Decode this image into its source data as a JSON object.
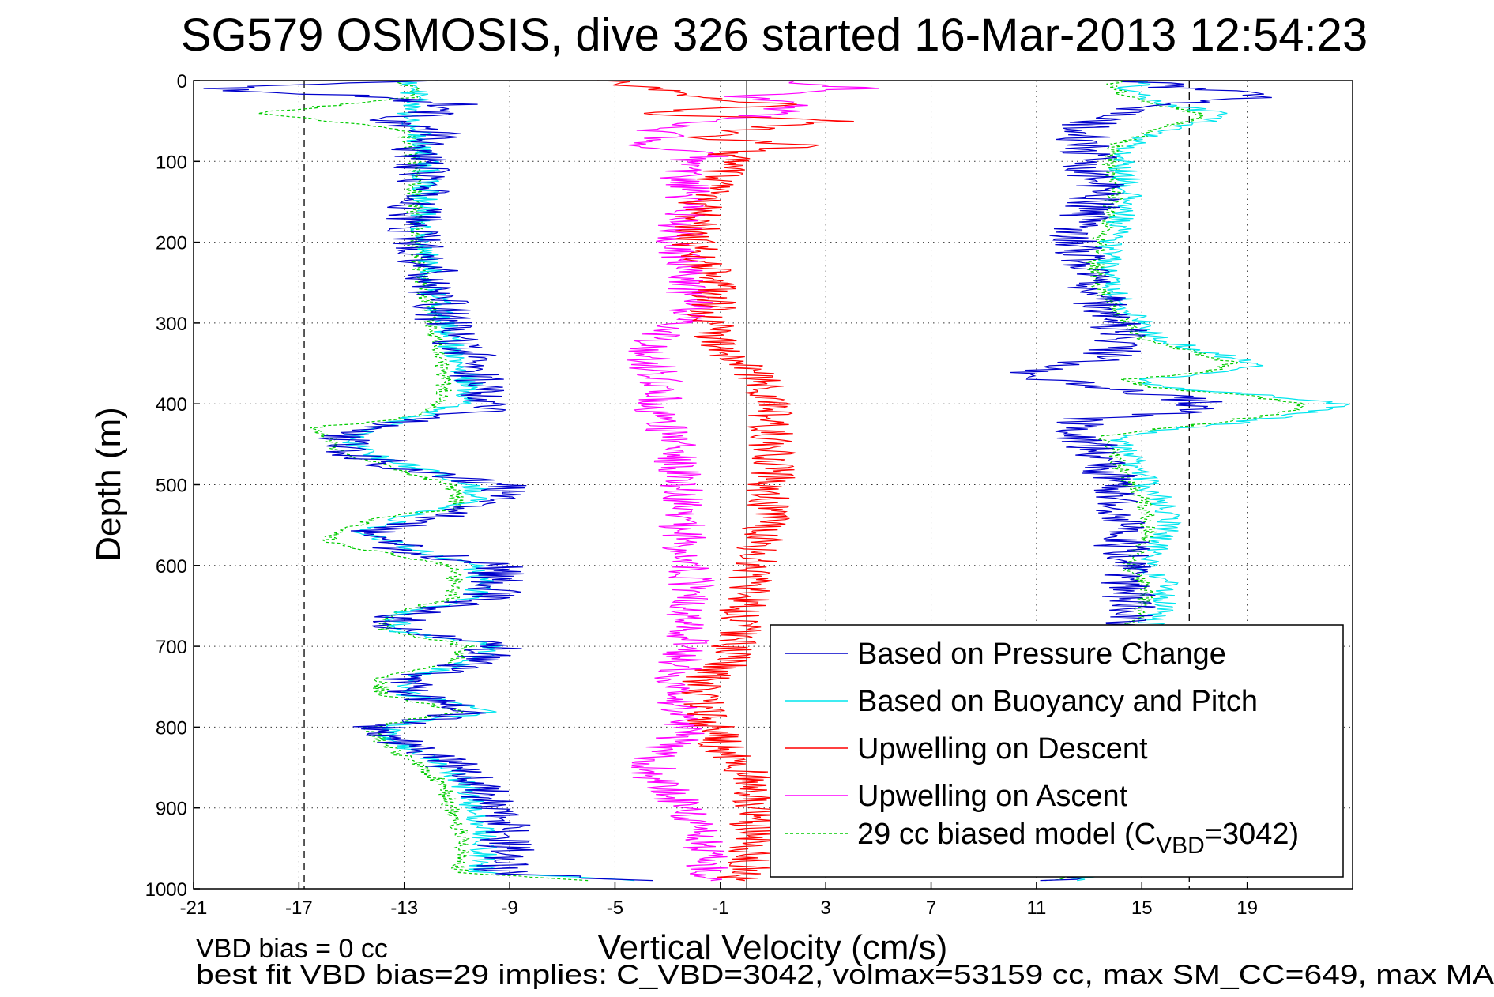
{
  "chart_data": {
    "type": "line",
    "title": "SG579 OSMOSIS, dive 326 started 16-Mar-2013 12:54:23",
    "xlabel": "Vertical Velocity (cm/s)",
    "ylabel": "Depth (m)",
    "xlim": [
      -21,
      23
    ],
    "ylim": [
      1000,
      0
    ],
    "y_reversed": true,
    "xticks": [
      "-21",
      "-17",
      "-13",
      "-9",
      "-5",
      "-1",
      "3",
      "7",
      "11",
      "15",
      "19"
    ],
    "yticks": [
      "0",
      "100",
      "200",
      "300",
      "400",
      "500",
      "600",
      "700",
      "800",
      "900",
      "1000"
    ],
    "grid": true,
    "legend_position": "lower-right",
    "reference_lines": [
      {
        "style": "dashed",
        "x": -16.8
      },
      {
        "style": "dashed",
        "x": 16.8
      },
      {
        "style": "solid",
        "x": 0
      }
    ],
    "footer_lines": [
      "VBD bias = 0 cc",
      "best fit VBD bias=29 implies: C_VBD=3042, volmax=53159 cc, max SM_CC=649, max MA"
    ],
    "series": [
      {
        "name": "Based on Pressure Change",
        "color": "#0000cc",
        "segments": [
          {
            "depth": [
              0,
              10,
              20,
              30,
              40,
              50,
              60,
              70,
              80,
              90,
              100,
              120,
              140,
              160,
              180,
              200,
              220,
              240,
              260,
              280,
              300,
              320,
              340,
              360,
              380,
              400,
              410,
              420,
              440,
              460,
              480,
              500,
              520,
              540,
              560,
              580,
              600,
              620,
              640,
              660,
              680,
              700,
              720,
              740,
              760,
              780,
              800,
              820,
              840,
              860,
              880,
              900,
              920,
              940,
              960,
              980,
              990
            ],
            "values": [
              -12,
              -20.5,
              -14,
              -11,
              -12,
              -13.5,
              -12.5,
              -11.5,
              -12.8,
              -12.2,
              -12.5,
              -12.2,
              -12.4,
              -12.6,
              -12.7,
              -12.5,
              -12.2,
              -12,
              -11.8,
              -11.6,
              -11.5,
              -11,
              -10.5,
              -10.4,
              -10,
              -9.6,
              -9.8,
              -13,
              -15.2,
              -15,
              -13,
              -9.4,
              -9.2,
              -11.5,
              -14.5,
              -13,
              -9.6,
              -9.4,
              -9.8,
              -13,
              -13.3,
              -9.4,
              -10.5,
              -12.8,
              -12.6,
              -10.3,
              -14,
              -13,
              -11.6,
              -10.6,
              -10,
              -9.6,
              -9.3,
              -9.1,
              -9.2,
              -9.3,
              -4.5
            ]
          },
          {
            "depth": [
              990,
              980,
              960,
              940,
              920,
              900,
              880,
              860,
              840,
              820,
              800,
              780,
              760,
              740,
              720,
              700,
              680,
              660,
              640,
              620,
              600,
              580,
              560,
              540,
              520,
              500,
              480,
              460,
              440,
              420,
              410,
              400,
              390,
              380,
              370,
              360,
              350,
              340,
              320,
              300,
              280,
              260,
              240,
              220,
              200,
              180,
              160,
              140,
              120,
              100,
              80,
              60,
              50,
              40,
              30,
              20,
              10,
              0
            ],
            "values": [
              11,
              14,
              14.5,
              14.6,
              14.5,
              14.7,
              14.6,
              14.5,
              14.3,
              14.2,
              14.2,
              14.1,
              14.1,
              14,
              14,
              14.1,
              14.2,
              14.4,
              14.5,
              14.5,
              14.3,
              14.2,
              14.3,
              14.2,
              14.2,
              14,
              13.6,
              13.3,
              12.8,
              12.5,
              16.5,
              17.5,
              16,
              13,
              11.7,
              10.8,
              12.5,
              13.8,
              14.3,
              14,
              13.5,
              13.2,
              13.1,
              12.8,
              12.5,
              12.7,
              13.1,
              13.4,
              13.2,
              13,
              12.8,
              12.6,
              13.2,
              14,
              15.8,
              20.5,
              16.5,
              15
            ]
          }
        ]
      },
      {
        "name": "Based on Buoyancy and Pitch",
        "color": "#00e5ee",
        "segments": [
          {
            "depth": [
              0,
              20,
              40,
              60,
              80,
              100,
              150,
              200,
              250,
              300,
              330,
              350,
              380,
              400,
              420,
              440,
              460,
              500,
              520,
              540,
              560,
              600,
              620,
              640,
              660,
              680,
              700,
              720,
              740,
              760,
              780,
              800,
              820,
              840,
              860,
              880,
              900,
              920,
              940,
              960,
              980,
              990
            ],
            "values": [
              -13,
              -12.5,
              -13,
              -12.5,
              -12.3,
              -12.2,
              -12.2,
              -12.3,
              -12,
              -11.5,
              -11.2,
              -10.8,
              -10.5,
              -10.7,
              -13,
              -15,
              -14.6,
              -10.3,
              -10.2,
              -13,
              -14.6,
              -10.3,
              -10.1,
              -10.3,
              -13.2,
              -13.4,
              -9.5,
              -10.5,
              -13,
              -12.8,
              -9.7,
              -13.8,
              -13.2,
              -12,
              -11,
              -10.6,
              -10.4,
              -10.1,
              -10,
              -10,
              -10.1,
              -4
            ]
          },
          {
            "depth": [
              990,
              980,
              960,
              940,
              920,
              900,
              880,
              860,
              840,
              820,
              800,
              780,
              760,
              740,
              720,
              700,
              680,
              660,
              640,
              620,
              600,
              580,
              560,
              540,
              520,
              500,
              480,
              460,
              440,
              420,
              410,
              400,
              390,
              380,
              370,
              360,
              350,
              340,
              320,
              300,
              280,
              260,
              240,
              220,
              200,
              180,
              160,
              140,
              120,
              100,
              80,
              60,
              50,
              40,
              30,
              20,
              10,
              0
            ],
            "values": [
              12,
              14.3,
              15,
              15.1,
              15,
              15.2,
              15.1,
              15,
              14.9,
              14.8,
              14.8,
              14.7,
              14.7,
              14.8,
              14.9,
              15,
              15.2,
              15.6,
              16,
              15.8,
              15.2,
              15.5,
              16,
              15.9,
              15.8,
              15.2,
              14.8,
              14.5,
              14,
              19.5,
              21.5,
              22.5,
              20,
              16,
              15,
              18.5,
              19.5,
              18,
              15.6,
              15,
              14.3,
              14,
              13.8,
              13.7,
              13.9,
              14.1,
              14.3,
              14.5,
              14.4,
              14.2,
              14.5,
              16,
              17.5,
              18,
              16,
              15,
              14.5,
              15
            ]
          }
        ]
      },
      {
        "name": "Upwelling on Descent",
        "color": "#ff0000",
        "segments": [
          {
            "depth": [
              0,
              10,
              20,
              30,
              40,
              50,
              60,
              70,
              80,
              90,
              100,
              120,
              140,
              160,
              180,
              200,
              220,
              240,
              260,
              280,
              300,
              320,
              340,
              360,
              380,
              400,
              420,
              440,
              460,
              480,
              500,
              520,
              540,
              560,
              580,
              600,
              620,
              640,
              660,
              680,
              700,
              720,
              740,
              760,
              780,
              800,
              820,
              840,
              860,
              880,
              900,
              920,
              940,
              960,
              980,
              990
            ],
            "values": [
              -5.5,
              -3.5,
              -2.5,
              2,
              -4.5,
              3.5,
              0,
              -2,
              2.5,
              -1,
              -0.5,
              -1.2,
              -1.6,
              -1.8,
              -1.9,
              -2,
              -1.8,
              -1.2,
              -1.2,
              -1.3,
              -1.4,
              -1.2,
              -0.8,
              0.3,
              0.6,
              0.8,
              0.9,
              0.9,
              1,
              1,
              0.9,
              0.8,
              0.8,
              0.6,
              0.5,
              0.3,
              0.1,
              0,
              -0.2,
              -0.1,
              -0.5,
              -0.7,
              -1.5,
              -1.8,
              -1.5,
              -1.3,
              -1,
              -0.4,
              0.1,
              0.4,
              0.3,
              0.2,
              0.3,
              0.1,
              0.2,
              -0.6
            ]
          }
        ]
      },
      {
        "name": "Upwelling on Ascent",
        "color": "#ff00ff",
        "segments": [
          {
            "depth": [
              0,
              10,
              20,
              30,
              40,
              50,
              60,
              70,
              80,
              90,
              100,
              120,
              140,
              160,
              180,
              200,
              220,
              240,
              260,
              280,
              300,
              320,
              340,
              360,
              380,
              400,
              420,
              440,
              460,
              480,
              500,
              520,
              540,
              560,
              580,
              600,
              620,
              640,
              660,
              680,
              700,
              720,
              740,
              760,
              780,
              800,
              820,
              840,
              860,
              880,
              900,
              920,
              940,
              960,
              980,
              990
            ],
            "values": [
              1,
              4.5,
              -0.5,
              2,
              1,
              -1,
              -3.5,
              -3,
              -4,
              -1,
              -2.5,
              -2.5,
              -2.2,
              -2.3,
              -2.5,
              -2.6,
              -2.4,
              -2.3,
              -2.2,
              -2.1,
              -2.3,
              -3.5,
              -3.8,
              -3.5,
              -3.2,
              -3.4,
              -3.3,
              -2.8,
              -2.6,
              -2.6,
              -2.5,
              -2.4,
              -2.5,
              -2.4,
              -2.3,
              -2.2,
              -2.1,
              -2,
              -2.2,
              -2.2,
              -2.3,
              -2.5,
              -2.8,
              -3,
              -2.5,
              -2.3,
              -2.8,
              -3.6,
              -3.5,
              -3,
              -2.4,
              -2,
              -1.8,
              -1.5,
              -1.5,
              -0.8
            ]
          }
        ]
      },
      {
        "name": "29 cc biased model (C_VBD=3042)",
        "legend_label": "29 cc biased model (C",
        "legend_subscript": "VBD",
        "legend_suffix": "=3042)",
        "color": "#00cc00",
        "dashed": true,
        "segments": [
          {
            "depth": [
              0,
              20,
              40,
              60,
              80,
              100,
              150,
              200,
              250,
              300,
              330,
              350,
              380,
              400,
              420,
              430,
              440,
              460,
              500,
              530,
              540,
              560,
              570,
              600,
              620,
              640,
              660,
              680,
              700,
              720,
              740,
              760,
              780,
              800,
              820,
              840,
              860,
              880,
              900,
              920,
              940,
              960,
              980,
              990
            ],
            "values": [
              -13,
              -12.5,
              -18.5,
              -13,
              -12.8,
              -12.7,
              -12.6,
              -12.6,
              -12.3,
              -11.9,
              -11.7,
              -11.6,
              -11.5,
              -11.5,
              -13.2,
              -16.8,
              -16,
              -15.5,
              -11.2,
              -11,
              -14,
              -15.5,
              -16,
              -11.3,
              -11,
              -11.2,
              -13.5,
              -13.8,
              -10.6,
              -11.2,
              -14,
              -13.8,
              -10.8,
              -14.3,
              -13.8,
              -12.8,
              -11.9,
              -11.4,
              -11.2,
              -11,
              -10.8,
              -10.8,
              -10.9,
              -6
            ]
          },
          {
            "depth": [
              990,
              980,
              960,
              940,
              920,
              900,
              880,
              860,
              840,
              820,
              800,
              780,
              760,
              740,
              720,
              700,
              680,
              660,
              640,
              620,
              600,
              580,
              560,
              540,
              520,
              500,
              480,
              460,
              440,
              420,
              410,
              400,
              390,
              380,
              370,
              360,
              350,
              340,
              320,
              300,
              280,
              260,
              240,
              220,
              200,
              180,
              160,
              140,
              120,
              100,
              80,
              60,
              50,
              40,
              30,
              20,
              10,
              0
            ],
            "values": [
              11.5,
              13.8,
              14.4,
              14.5,
              14.4,
              14.6,
              14.5,
              14.4,
              14.2,
              14.1,
              14.1,
              14,
              14,
              14.1,
              14.2,
              14.3,
              14.5,
              14.9,
              15.2,
              15,
              14.5,
              14.8,
              15.3,
              15.2,
              15.1,
              14.5,
              14.2,
              13.9,
              13.5,
              18.5,
              20.5,
              21,
              19,
              15.5,
              14.4,
              17.5,
              18.5,
              17.5,
              15,
              14.4,
              13.8,
              13.5,
              13.3,
              13.2,
              13.4,
              13.6,
              13.8,
              14,
              13.9,
              13.7,
              14,
              15.5,
              16.8,
              17.2,
              15.5,
              14.5,
              14,
              14
            ]
          }
        ]
      }
    ]
  }
}
